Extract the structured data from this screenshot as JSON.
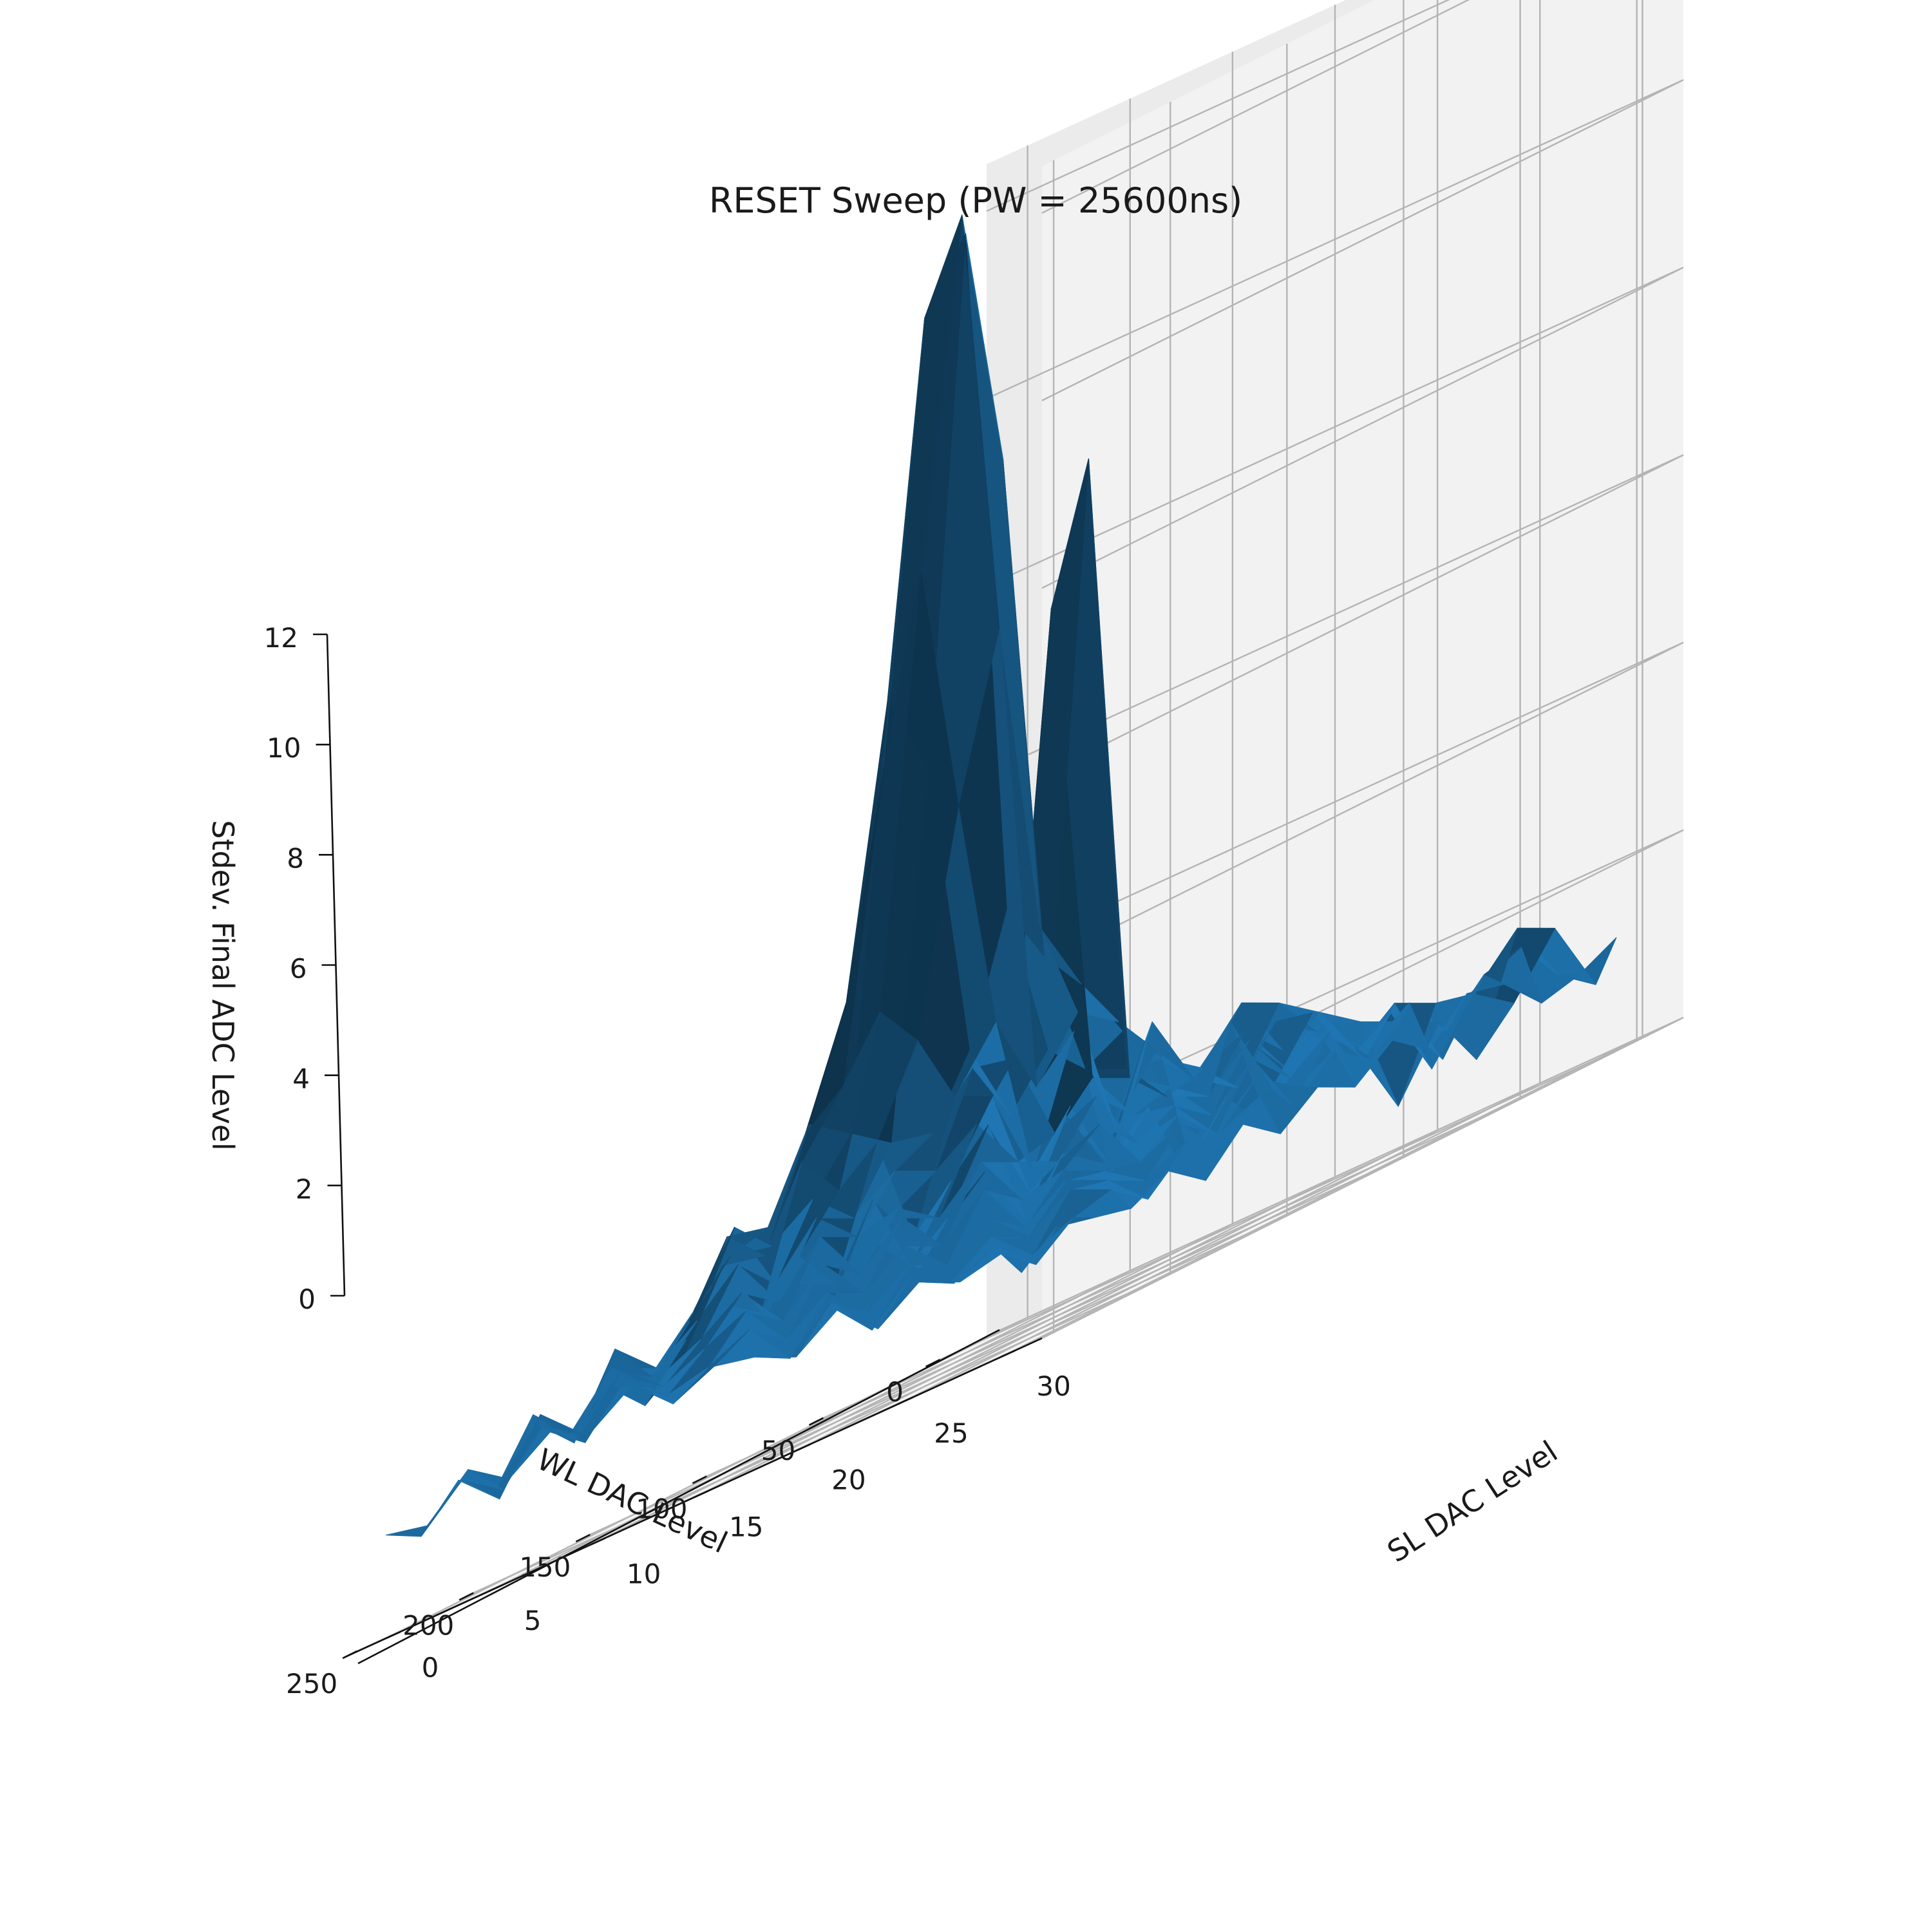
{
  "chart_data": {
    "type": "surface3d",
    "title": "RESET Sweep (PW = 25600ns)",
    "xlabel": "WL DAC Level",
    "ylabel": "SL DAC Level",
    "zlabel": "Stdev. Final ADC Level",
    "xlim": [
      -20,
      255
    ],
    "ylim": [
      -2,
      32
    ],
    "zlim": [
      0,
      12.5
    ],
    "xticks": [
      0,
      50,
      100,
      150,
      200,
      250
    ],
    "yticks": [
      0,
      5,
      10,
      15,
      20,
      25,
      30
    ],
    "zticks": [
      0,
      2,
      4,
      6,
      8,
      10,
      12
    ],
    "color": "#1f77b4",
    "wl_levels": [
      0,
      16,
      32,
      48,
      64,
      80,
      96,
      112,
      128,
      144,
      160,
      176,
      192,
      208,
      224,
      240,
      255
    ],
    "sl_levels": [
      0,
      2,
      4,
      6,
      8,
      10,
      12,
      14,
      16,
      18,
      20,
      22,
      24,
      26,
      28,
      30,
      31
    ],
    "z": [
      [
        1.1,
        0.9,
        1.6,
        1.3,
        2.4,
        0.8,
        1.4,
        0.9,
        1.7,
        1.2,
        1.5,
        0.7,
        1.3,
        1.0,
        1.6,
        0.8,
        1.2
      ],
      [
        1.4,
        1.8,
        1.1,
        2.0,
        1.3,
        1.7,
        0.9,
        2.2,
        1.3,
        1.9,
        1.0,
        1.6,
        1.4,
        0.6,
        1.8,
        1.1,
        1.0
      ],
      [
        0.9,
        1.5,
        2.3,
        1.4,
        2.1,
        1.2,
        2.6,
        1.8,
        1.5,
        2.0,
        1.7,
        1.3,
        0.5,
        1.2,
        1.4,
        1.6,
        0.9
      ],
      [
        1.7,
        1.2,
        1.9,
        2.6,
        1.6,
        2.9,
        1.7,
        2.3,
        1.8,
        1.5,
        2.2,
        1.9,
        1.6,
        1.4,
        0.8,
        1.5,
        1.3
      ],
      [
        1.2,
        2.1,
        1.5,
        2.8,
        3.4,
        2.5,
        3.1,
        2.8,
        2.2,
        1.9,
        2.4,
        1.7,
        1.8,
        1.2,
        1.5,
        1.1,
        1.4
      ],
      [
        1.6,
        1.4,
        2.7,
        3.6,
        5.9,
        7.6,
        4.2,
        3.4,
        2.7,
        2.2,
        1.9,
        2.1,
        1.5,
        1.7,
        1.3,
        1.6,
        1.0
      ],
      [
        1.3,
        1.9,
        2.4,
        4.1,
        8.6,
        12.2,
        9.4,
        3.9,
        2.5,
        2.3,
        1.8,
        1.6,
        2.0,
        1.4,
        1.7,
        1.2,
        1.3
      ],
      [
        1.8,
        1.5,
        2.9,
        3.5,
        6.7,
        11.3,
        12.0,
        4.6,
        2.9,
        9.0,
        2.2,
        1.9,
        1.4,
        1.8,
        1.1,
        1.5,
        1.0
      ],
      [
        1.4,
        2.2,
        2.1,
        3.2,
        4.4,
        7.4,
        6.5,
        3.3,
        2.4,
        7.6,
        2.4,
        1.8,
        1.7,
        1.2,
        1.6,
        1.3,
        1.2
      ],
      [
        1.1,
        1.6,
        2.5,
        2.4,
        3.3,
        3.0,
        2.7,
        2.6,
        3.1,
        3.0,
        2.0,
        2.2,
        1.5,
        1.6,
        1.2,
        1.4,
        0.9
      ],
      [
        1.5,
        1.3,
        1.8,
        2.3,
        2.2,
        2.5,
        2.1,
        2.4,
        2.2,
        2.5,
        1.9,
        1.7,
        1.9,
        1.3,
        1.5,
        1.0,
        1.2
      ],
      [
        1.2,
        1.7,
        1.4,
        1.9,
        2.6,
        1.8,
        2.3,
        1.9,
        2.0,
        1.7,
        2.1,
        1.5,
        1.6,
        1.4,
        1.1,
        1.3,
        0.8
      ],
      [
        1.6,
        1.1,
        1.9,
        1.5,
        1.8,
        2.2,
        1.6,
        2.1,
        1.5,
        1.9,
        1.4,
        1.8,
        1.2,
        1.5,
        1.3,
        0.9,
        1.1
      ],
      [
        1.0,
        1.5,
        1.2,
        1.7,
        1.4,
        1.6,
        1.9,
        1.4,
        1.8,
        1.3,
        1.6,
        1.2,
        1.5,
        1.1,
        1.4,
        1.2,
        0.9
      ],
      [
        1.3,
        0.9,
        1.6,
        1.2,
        1.7,
        1.3,
        1.5,
        1.7,
        1.2,
        1.5,
        1.1,
        1.4,
        1.0,
        1.3,
        0.9,
        1.1,
        1.0
      ],
      [
        0.9,
        1.3,
        1.0,
        1.5,
        1.1,
        1.6,
        1.2,
        1.3,
        1.5,
        1.0,
        1.4,
        0.9,
        1.3,
        1.0,
        1.2,
        0.8,
        1.1
      ],
      [
        1.1,
        1.0,
        1.4,
        1.1,
        1.4,
        1.2,
        1.5,
        1.1,
        1.3,
        1.2,
        1.0,
        1.3,
        0.9,
        1.2,
        1.0,
        1.1,
        0.8
      ]
    ]
  }
}
